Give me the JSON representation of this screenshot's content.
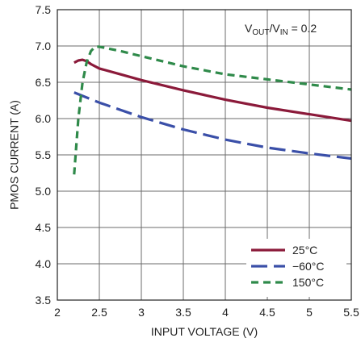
{
  "chart_data": {
    "type": "line",
    "xlabel": "INPUT VOLTAGE (V)",
    "ylabel": "PMOS CURRENT (A)",
    "xlim": [
      2,
      5.5
    ],
    "ylim": [
      3.5,
      7.5
    ],
    "xticks": [
      2,
      2.5,
      3,
      3.5,
      4,
      4.5,
      5,
      5.5
    ],
    "xtick_labels": [
      "2",
      "2.5",
      "3",
      "3.5",
      "4",
      "4.5",
      "5",
      "5.5"
    ],
    "yticks": [
      3.5,
      4.0,
      4.5,
      5.0,
      5.5,
      6.0,
      6.5,
      7.0,
      7.5
    ],
    "ytick_labels": [
      "3.5",
      "4.0",
      "4.5",
      "5.0",
      "5.5",
      "6.0",
      "6.5",
      "7.0",
      "7.5"
    ],
    "grid": true,
    "legend_position": "bottom-right",
    "annotation": {
      "v": "V",
      "out": "OUT",
      "slash": "/V",
      "in": "IN",
      "rest": " = 0.2"
    },
    "series": [
      {
        "name": "25°C",
        "color": "#8b1a3a",
        "dash": "solid",
        "x": [
          2.2,
          2.25,
          2.3,
          2.35,
          2.4,
          2.5,
          2.75,
          3.0,
          3.5,
          4.0,
          4.5,
          5.0,
          5.5
        ],
        "y": [
          6.77,
          6.8,
          6.81,
          6.79,
          6.75,
          6.69,
          6.61,
          6.53,
          6.39,
          6.26,
          6.15,
          6.06,
          5.97
        ]
      },
      {
        "name": "−60°C",
        "color": "#3a4fa8",
        "dash": "long",
        "x": [
          2.2,
          2.5,
          3.0,
          3.5,
          4.0,
          4.5,
          5.0,
          5.5
        ],
        "y": [
          6.36,
          6.22,
          6.02,
          5.85,
          5.71,
          5.6,
          5.52,
          5.45
        ]
      },
      {
        "name": "150°C",
        "color": "#2f8a4a",
        "dash": "short",
        "x": [
          2.2,
          2.25,
          2.3,
          2.35,
          2.4,
          2.45,
          2.5,
          2.75,
          3.0,
          3.5,
          4.0,
          4.5,
          5.0,
          5.5
        ],
        "y": [
          5.23,
          6.0,
          6.5,
          6.78,
          6.93,
          6.99,
          6.99,
          6.93,
          6.86,
          6.72,
          6.61,
          6.54,
          6.47,
          6.4
        ]
      }
    ]
  }
}
